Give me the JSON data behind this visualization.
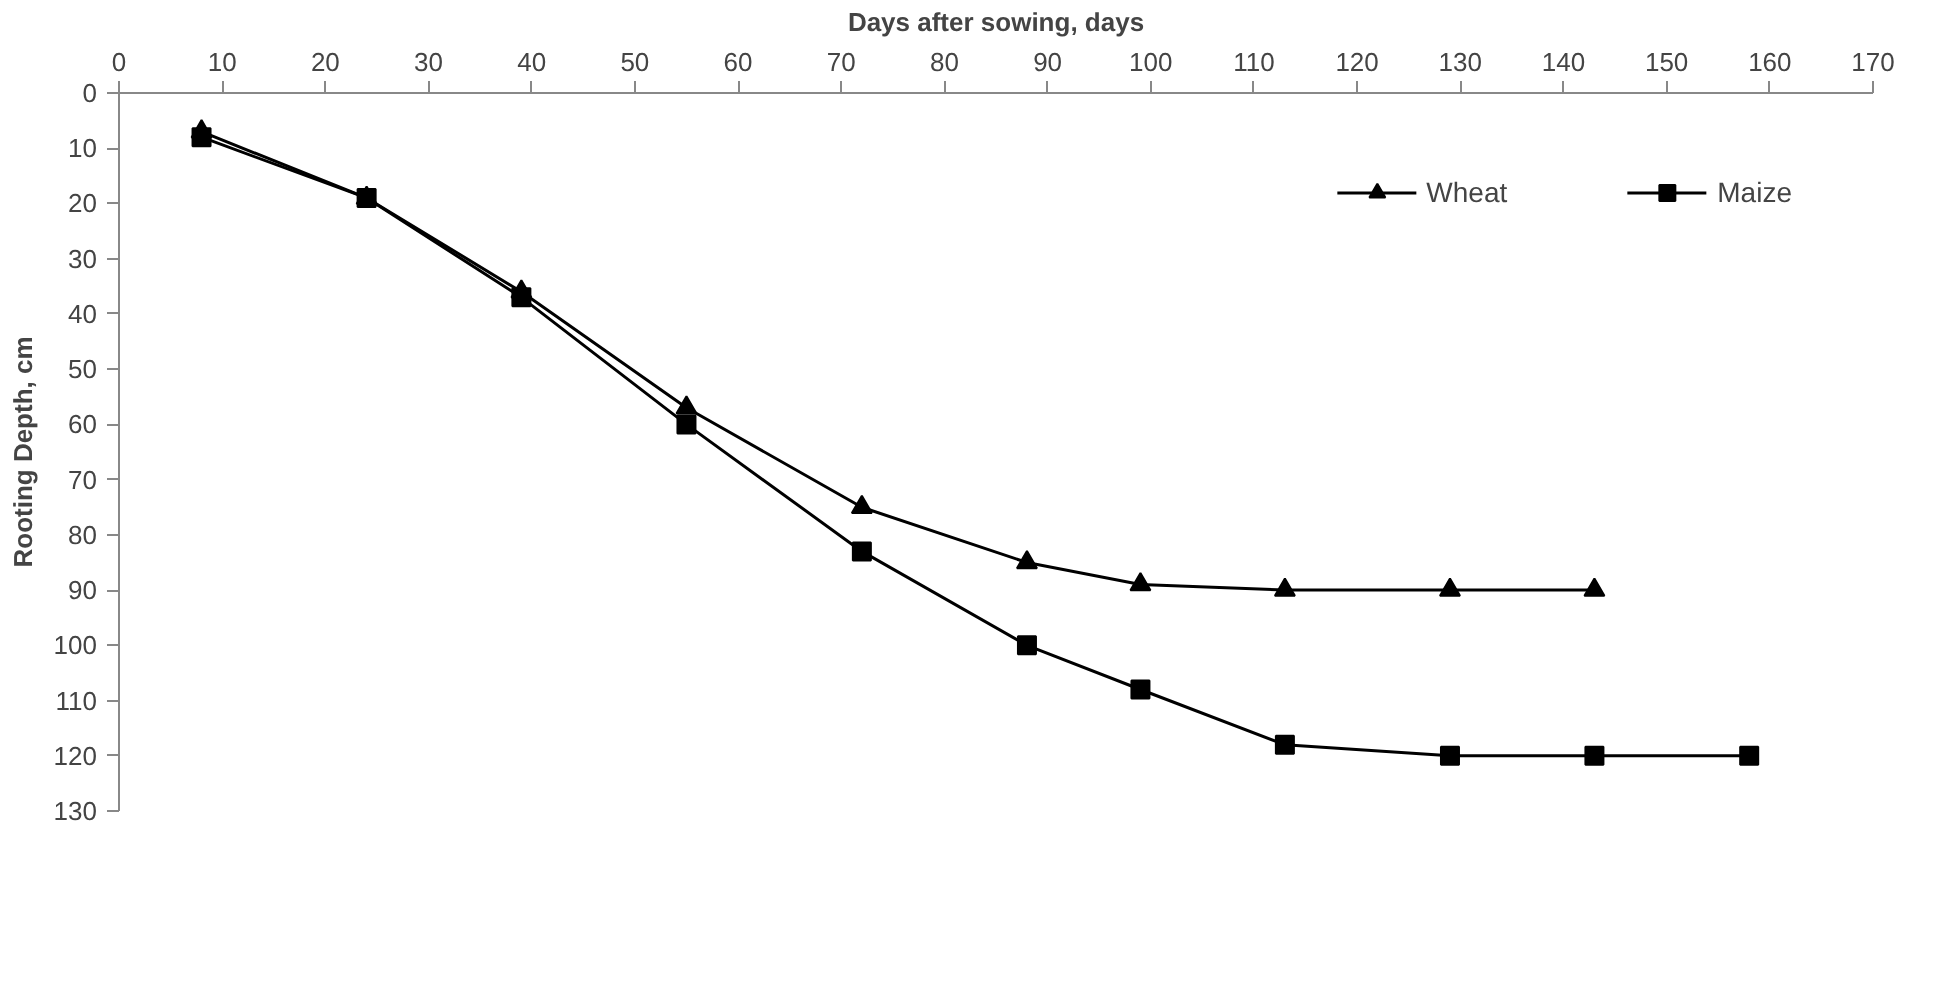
{
  "chart_data": {
    "type": "line",
    "xlabel": "Days after sowing, days",
    "ylabel": "Rooting Depth, cm",
    "xlim": [
      0,
      170
    ],
    "xticks": [
      0,
      10,
      20,
      30,
      40,
      50,
      60,
      70,
      80,
      90,
      100,
      110,
      120,
      130,
      140,
      150,
      160,
      170
    ],
    "ylim": [
      130,
      0
    ],
    "yticks": [
      0,
      10,
      20,
      30,
      40,
      50,
      60,
      70,
      80,
      90,
      100,
      110,
      120,
      130
    ],
    "grid": false,
    "legend": "top right",
    "series": [
      {
        "name": "Wheat",
        "color": "#000000",
        "marker": "triangle",
        "x": [
          8,
          24,
          39,
          55,
          72,
          88,
          99,
          113,
          129,
          143
        ],
        "values": [
          7,
          19,
          36,
          57,
          75,
          85,
          89,
          90,
          90,
          90
        ]
      },
      {
        "name": "Maize",
        "color": "#000000",
        "marker": "square",
        "x": [
          8,
          24,
          39,
          55,
          72,
          88,
          99,
          113,
          129,
          143,
          158
        ],
        "values": [
          8,
          19,
          37,
          60,
          83,
          100,
          108,
          118,
          120,
          120,
          120
        ]
      }
    ]
  }
}
